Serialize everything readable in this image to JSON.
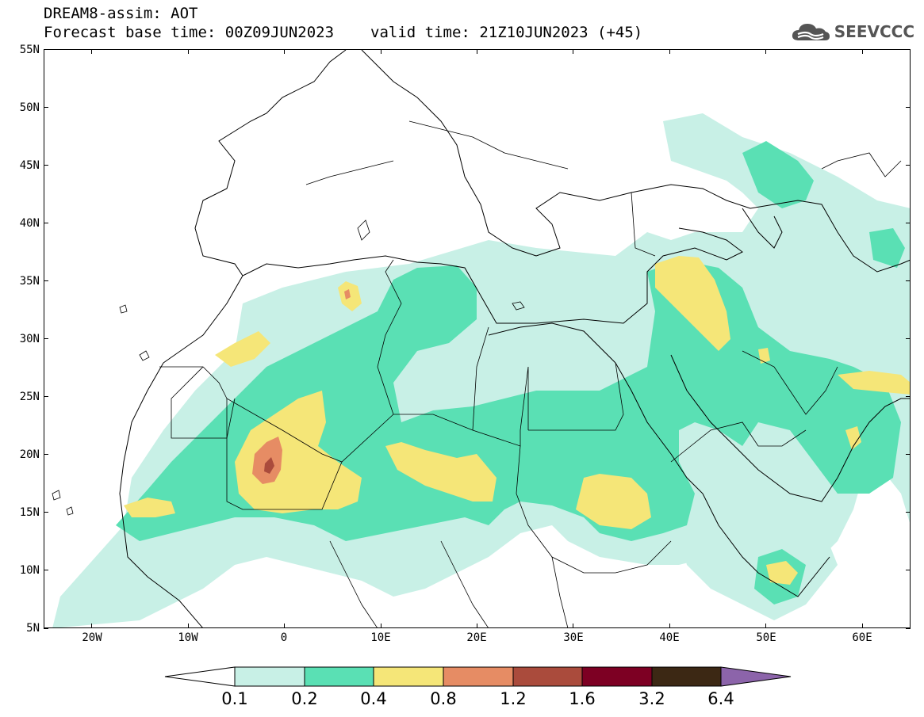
{
  "header": {
    "line1": "DREAM8-assim: AOT",
    "base_time": "Forecast base time: 00Z09JUN2023",
    "valid_time": "valid time: 21Z10JUN2023 (+45)"
  },
  "logo": {
    "text": "SEEVCCC",
    "icon": "cloud-icon",
    "color": "#555555"
  },
  "map": {
    "lon_range": [
      -25,
      65
    ],
    "lat_range": [
      5,
      55
    ],
    "lat_labels": [
      {
        "lat": 55,
        "label": "55N"
      },
      {
        "lat": 50,
        "label": "50N"
      },
      {
        "lat": 45,
        "label": "45N"
      },
      {
        "lat": 40,
        "label": "40N"
      },
      {
        "lat": 35,
        "label": "35N"
      },
      {
        "lat": 30,
        "label": "30N"
      },
      {
        "lat": 25,
        "label": "25N"
      },
      {
        "lat": 20,
        "label": "20N"
      },
      {
        "lat": 15,
        "label": "15N"
      },
      {
        "lat": 10,
        "label": "10N"
      },
      {
        "lat": 5,
        "label": "5N"
      }
    ],
    "lon_labels": [
      {
        "lon": -20,
        "label": "20W"
      },
      {
        "lon": -10,
        "label": "10W"
      },
      {
        "lon": 0,
        "label": "0"
      },
      {
        "lon": 10,
        "label": "10E"
      },
      {
        "lon": 20,
        "label": "20E"
      },
      {
        "lon": 30,
        "label": "30E"
      },
      {
        "lon": 40,
        "label": "40E"
      },
      {
        "lon": 50,
        "label": "50E"
      },
      {
        "lon": 60,
        "label": "60E"
      }
    ]
  },
  "colorbar": {
    "levels": [
      "0.1",
      "0.2",
      "0.4",
      "0.8",
      "1.2",
      "1.6",
      "3.2",
      "6.4"
    ],
    "colors": [
      "#ffffff",
      "#c8f0e6",
      "#5ae0b4",
      "#f5e678",
      "#e68c64",
      "#aa4b3c",
      "#7d0023",
      "#3c2814",
      "#8c64aa"
    ]
  }
}
